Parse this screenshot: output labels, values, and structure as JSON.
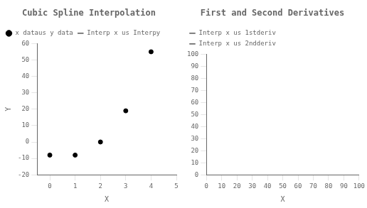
{
  "chart_data": [
    {
      "type": "scatter",
      "title": "Cubic Spline Interpolation",
      "x_label": "X",
      "y_label": "Y",
      "x": [
        0,
        1,
        2,
        3,
        4
      ],
      "series": [
        {
          "name": "x dataus y data",
          "type": "scatter",
          "marker": "circle",
          "color": "black",
          "values": [
            -8,
            -8,
            0,
            19,
            55
          ]
        },
        {
          "name": "Interp x us Interpy",
          "type": "line",
          "line_style": "solid",
          "color": "black",
          "values": [
            null,
            null,
            null,
            null,
            null
          ]
        }
      ],
      "xlim": [
        -0.5,
        5
      ],
      "xticks": [
        0,
        1,
        2,
        3,
        4,
        5
      ],
      "ylim": [
        -20,
        60
      ],
      "yticks": [
        -20,
        -10,
        0,
        10,
        20,
        30,
        40,
        50,
        60
      ],
      "grid": false,
      "legend": "upper left"
    },
    {
      "type": "line",
      "title": "First and Second Derivatives",
      "x_label": "X",
      "x": [],
      "series": [
        {
          "name": "Interp x us 1stderiv",
          "type": "line",
          "line_style": "solid",
          "color": "black",
          "values": []
        },
        {
          "name": "Interp x us 2ndderiv",
          "type": "line",
          "line_style": "dotted",
          "color": "black",
          "values": []
        }
      ],
      "xlim": [
        0,
        100
      ],
      "xticks": [
        0,
        10,
        20,
        30,
        40,
        50,
        60,
        70,
        80,
        90,
        100
      ],
      "ylim": [
        0,
        100
      ],
      "yticks": [
        0,
        10,
        20,
        30,
        40,
        50,
        60,
        70,
        80,
        90,
        100
      ],
      "grid": false,
      "legend": "upper left"
    }
  ]
}
